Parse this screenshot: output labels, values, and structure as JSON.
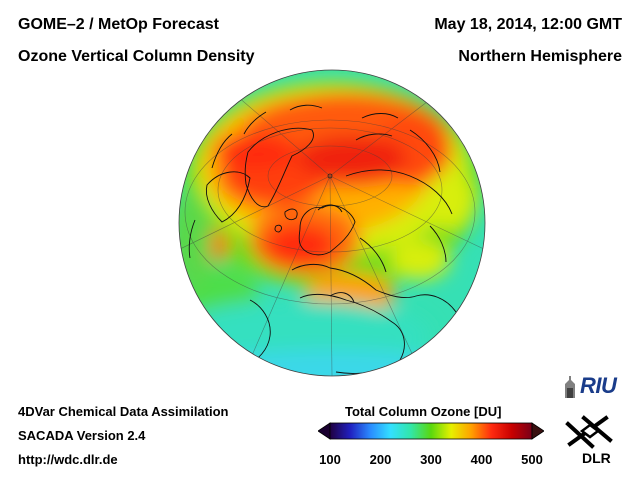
{
  "header": {
    "title_left_1": "GOME–2 / MetOp Forecast",
    "title_left_2": "Ozone Vertical Column Density",
    "title_right_1": "May 18, 2014, 12:00 GMT",
    "title_right_2": "Northern Hemisphere"
  },
  "footer": {
    "line1": "4DVar Chemical Data Assimilation",
    "line2": "SACADA Version 2.4",
    "line3": "http://wdc.dlr.de"
  },
  "colorbar": {
    "title": "Total Column Ozone [DU]",
    "min": 100,
    "max": 500,
    "ticks": [
      "100",
      "200",
      "300",
      "400",
      "500"
    ],
    "colors": [
      "#200040",
      "#2020c0",
      "#2a8cff",
      "#33e0ff",
      "#32e6a8",
      "#5ad80e",
      "#e6f000",
      "#ffa000",
      "#ff2a10",
      "#c80000",
      "#780018"
    ]
  },
  "logos": {
    "riu": "RIU",
    "dlr": "DLR"
  },
  "colors": {
    "background": "#ffffff",
    "riu_blue": "#1a3c8a"
  }
}
